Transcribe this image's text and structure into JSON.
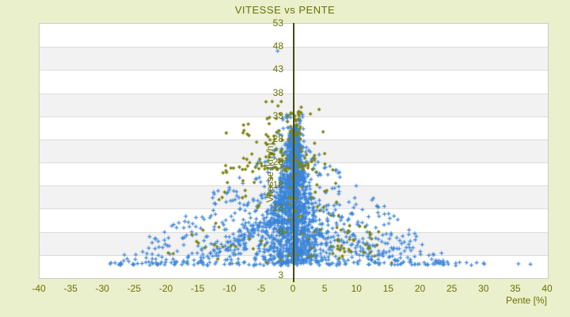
{
  "title": "VITESSE vs PENTE",
  "colors": {
    "page_bg": "#eaefcc",
    "plot_bg": "#ffffff",
    "band_alt": "#f2f2f2",
    "grid_line": "#dcdcdc",
    "plot_border": "#cccccc",
    "axis_line": "#454d00",
    "text": "#6b7300",
    "series_blue": "#3b85d8",
    "series_olive": "#7e8412"
  },
  "chart_data": {
    "type": "scatter",
    "title": "VITESSE vs PENTE",
    "xlabel": "Pente [%]",
    "ylabel": "Vitesse [km/h]",
    "x_range": [
      -40,
      40
    ],
    "y_axis_top": 53,
    "y_axis_bottom_edge": -2,
    "x_ticks": [
      -40,
      -35,
      -30,
      -25,
      -20,
      -15,
      -10,
      -5,
      0,
      5,
      10,
      15,
      20,
      25,
      30,
      35,
      40
    ],
    "y_ticks": [
      53,
      48,
      43,
      38,
      33,
      28,
      23,
      18,
      13,
      8,
      3
    ],
    "grid": "horizontal alternating white/gray bands every 5 units",
    "legend": "none",
    "seed": 42,
    "series": [
      {
        "name": "vitesse-points-bleus",
        "marker": "plus",
        "color": "#3b85d8",
        "approx_count": 2050,
        "description": "Dense triangular cloud of speed-vs-slope GPS samples peaking near pente 0, speeds mostly 1-33 km/h, curved streak trajectories fanning left and right, sparse bottom row from -29 to +37, one high outlier near (-2.6, 47)",
        "clusters": [
          {
            "kind": "box",
            "n": 46,
            "x": [
              -28.5,
              30.5
            ],
            "y": [
              0.75,
              1.6
            ]
          },
          {
            "kind": "box",
            "n": 7,
            "x": [
              22,
              30
            ],
            "y": [
              0.8,
              1.5
            ]
          },
          {
            "kind": "points",
            "pts": [
              [
                35.3,
                1.2
              ],
              [
                37.2,
                1.1
              ],
              [
                -2.6,
                47.2
              ]
            ]
          },
          {
            "kind": "streaks",
            "n": 13,
            "x_end": [
              -22,
              -6
            ],
            "y0": [
              7,
              21
            ],
            "y_end": 1.3,
            "pts": 20,
            "curve": 1.7
          },
          {
            "kind": "streaks",
            "n": 9,
            "x_end": [
              5.5,
              23.5
            ],
            "y0": [
              6,
              18
            ],
            "y_end": 1.2,
            "pts": 20,
            "curve": 1.7
          },
          {
            "kind": "core",
            "n": 1400,
            "y_min": 1.2,
            "y_span": 29,
            "y_pow": 1.15,
            "w_base": 0.7,
            "w_slope": 0.18
          },
          {
            "kind": "box",
            "n": 150,
            "x": [
              0.1,
              0.5
            ],
            "y": [
              2,
              31.5
            ]
          },
          {
            "kind": "fan",
            "n": 420,
            "y_min": 1,
            "y_span": 26,
            "y_pow": 2.1,
            "w_base": 2,
            "wL": 1.05,
            "wR": 0.92,
            "x_pow": 0.75,
            "left_frac": 0.56
          },
          {
            "kind": "tribox",
            "n": 45,
            "xc": -0.5,
            "xh": 3,
            "y": [
              26,
              33.8
            ],
            "y_pow": 1.2
          }
        ]
      },
      {
        "name": "vitesse-points-olive",
        "marker": "diamond",
        "color": "#7e8412",
        "approx_count": 250,
        "description": "Sparser olive diamonds mixed over the blue cloud: upper cluster between pente -11 and +5 at 22-36 km/h, mid/left scatter, small cluster near pente 7-14 at 3-10 km/h",
        "clusters": [
          {
            "kind": "tribox",
            "n": 115,
            "xc": -2.8,
            "xh": 8.6,
            "y": [
              21.5,
              36.2
            ],
            "y_pow": 1.6
          },
          {
            "kind": "box",
            "n": 65,
            "x": [
              -12,
              7.5
            ],
            "y": [
              4,
              21.5
            ]
          },
          {
            "kind": "box",
            "n": 28,
            "x": [
              6.8,
              13.6
            ],
            "y": [
              3.4,
              9.6
            ]
          },
          {
            "kind": "box",
            "n": 12,
            "x": [
              -15,
              16
            ],
            "y": [
              1,
              3.4
            ]
          },
          {
            "kind": "box",
            "n": 10,
            "x": [
              -20,
              -12
            ],
            "y": [
              3,
              10
            ]
          },
          {
            "kind": "box",
            "n": 18,
            "x": [
              -0.3,
              1.2
            ],
            "y": [
              28,
              34.5
            ]
          }
        ]
      }
    ]
  }
}
